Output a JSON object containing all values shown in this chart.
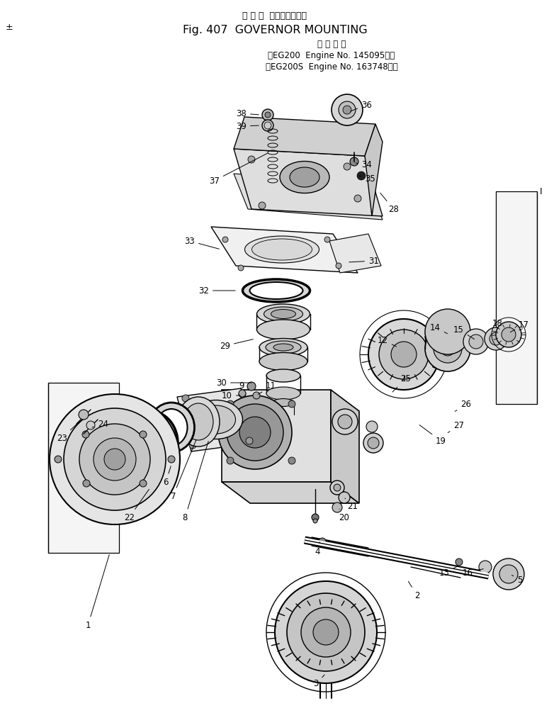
{
  "title_jp": "ガ バ ナ  マウンティング",
  "title_en": "Fig. 407  GOVERNOR MOUNTING",
  "subtitle_jp": "適 用 号 機",
  "subtitle_line1": "（EG200  Engine No. 145095～）",
  "subtitle_line2": "（EG200S  Engine No. 163748～）",
  "bg_color": "#ffffff",
  "text_color": "#000000",
  "page_marker": "±",
  "right_marker": "I",
  "figsize": [
    7.75,
    10.06
  ],
  "dpi": 100
}
